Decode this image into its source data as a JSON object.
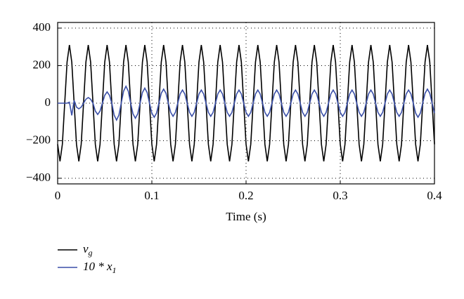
{
  "chart_data": {
    "type": "line",
    "x_label": "Time (s)",
    "x": [
      0,
      0.0025,
      0.005,
      0.0075,
      0.01,
      0.0125,
      0.015,
      0.0175,
      0.02,
      0.0225,
      0.025,
      0.0275,
      0.03,
      0.0325,
      0.035,
      0.0375,
      0.04,
      0.0425,
      0.045,
      0.0475,
      0.05,
      0.0525,
      0.055,
      0.0575,
      0.06,
      0.0625,
      0.065,
      0.0675,
      0.07,
      0.0725,
      0.075,
      0.0775,
      0.08,
      0.0825,
      0.085,
      0.0875,
      0.09,
      0.0925,
      0.095,
      0.0975,
      0.1,
      0.1025,
      0.105,
      0.1075,
      0.11,
      0.1125,
      0.115,
      0.1175,
      0.12,
      0.1225,
      0.125,
      0.1275,
      0.13,
      0.1325,
      0.135,
      0.1375,
      0.14,
      0.1425,
      0.145,
      0.1475,
      0.15,
      0.1525,
      0.155,
      0.1575,
      0.16,
      0.1625,
      0.165,
      0.1675,
      0.17,
      0.1725,
      0.175,
      0.1775,
      0.18,
      0.1825,
      0.185,
      0.1875,
      0.19,
      0.1925,
      0.195,
      0.1975,
      0.2,
      0.2025,
      0.205,
      0.2075,
      0.21,
      0.2125,
      0.215,
      0.2175,
      0.22,
      0.2225,
      0.225,
      0.2275,
      0.23,
      0.2325,
      0.235,
      0.2375,
      0.24,
      0.2425,
      0.245,
      0.2475,
      0.25,
      0.2525,
      0.255,
      0.2575,
      0.26,
      0.2625,
      0.265,
      0.2675,
      0.27,
      0.2725,
      0.275,
      0.2775,
      0.28,
      0.2825,
      0.285,
      0.2875,
      0.29,
      0.2925,
      0.295,
      0.2975,
      0.3,
      0.3025,
      0.305,
      0.3075,
      0.31,
      0.3125,
      0.315,
      0.3175,
      0.32,
      0.3225,
      0.325,
      0.3275,
      0.33,
      0.3325,
      0.335,
      0.3375,
      0.34,
      0.3425,
      0.345,
      0.3475,
      0.35,
      0.3525,
      0.355,
      0.3575,
      0.36,
      0.3625,
      0.365,
      0.3675,
      0.37,
      0.3725,
      0.375,
      0.3775,
      0.38,
      0.3825,
      0.385,
      0.3875,
      0.39,
      0.3925,
      0.395,
      0.3975,
      0.4
    ],
    "series": [
      {
        "name": "v_g",
        "color": "#000000",
        "values": [
          -219,
          -310,
          -219,
          0,
          219,
          310,
          219,
          0,
          -219,
          -310,
          -219,
          0,
          219,
          310,
          219,
          0,
          -219,
          -310,
          -219,
          0,
          219,
          310,
          219,
          0,
          -219,
          -310,
          -219,
          0,
          219,
          310,
          219,
          0,
          -219,
          -310,
          -219,
          0,
          219,
          310,
          219,
          0,
          -219,
          -310,
          -219,
          0,
          219,
          310,
          219,
          0,
          -219,
          -310,
          -219,
          0,
          219,
          310,
          219,
          0,
          -219,
          -310,
          -219,
          0,
          219,
          310,
          219,
          0,
          -219,
          -310,
          -219,
          0,
          219,
          310,
          219,
          0,
          -219,
          -310,
          -219,
          0,
          219,
          310,
          219,
          0,
          -219,
          -310,
          -219,
          0,
          219,
          310,
          219,
          0,
          -219,
          -310,
          -219,
          0,
          219,
          310,
          219,
          0,
          -219,
          -310,
          -219,
          0,
          219,
          310,
          219,
          0,
          -219,
          -310,
          -219,
          0,
          219,
          310,
          219,
          0,
          -219,
          -310,
          -219,
          0,
          219,
          310,
          219,
          0,
          -219,
          -310,
          -219,
          0,
          219,
          310,
          219,
          0,
          -219,
          -310,
          -219,
          0,
          219,
          310,
          219,
          0,
          -219,
          -310,
          -219,
          0,
          219,
          310,
          219,
          0,
          -219,
          -310,
          -219,
          0,
          219,
          310,
          219,
          0,
          -219,
          -310,
          -219,
          0,
          219,
          310,
          219,
          0,
          -219
        ]
      },
      {
        "name": "10 * x_1",
        "color": "#3a4fa8",
        "values": [
          0,
          0,
          0,
          0,
          0,
          5,
          -65,
          15,
          -21,
          -30,
          -21,
          0,
          21,
          30,
          21,
          0,
          -42,
          -60,
          -42,
          0,
          42,
          60,
          42,
          0,
          -64,
          -90,
          -64,
          0,
          64,
          90,
          64,
          0,
          -57,
          -80,
          -57,
          0,
          57,
          80,
          57,
          0,
          -53,
          -75,
          -53,
          0,
          53,
          75,
          53,
          0,
          -49,
          -70,
          -49,
          0,
          49,
          70,
          49,
          0,
          -49,
          -70,
          -49,
          0,
          49,
          70,
          49,
          0,
          -49,
          -70,
          -49,
          0,
          49,
          70,
          49,
          0,
          -49,
          -70,
          -49,
          0,
          49,
          70,
          49,
          0,
          -49,
          -70,
          -49,
          0,
          49,
          70,
          49,
          0,
          -49,
          -70,
          -49,
          0,
          49,
          70,
          49,
          0,
          -49,
          -70,
          -49,
          0,
          49,
          70,
          49,
          0,
          -49,
          -70,
          -49,
          0,
          49,
          70,
          49,
          0,
          -49,
          -70,
          -49,
          0,
          49,
          70,
          49,
          0,
          -49,
          -70,
          -49,
          0,
          49,
          70,
          49,
          0,
          -49,
          -70,
          -49,
          0,
          49,
          70,
          49,
          0,
          -49,
          -70,
          -49,
          0,
          49,
          70,
          49,
          0,
          -49,
          -70,
          -49,
          0,
          49,
          70,
          49,
          0,
          -53,
          -75,
          -53,
          0,
          53,
          75,
          53,
          0,
          -53
        ]
      }
    ],
    "xlim": [
      0,
      0.4
    ],
    "xticks": [
      0,
      0.1,
      0.2,
      0.3,
      0.4
    ],
    "ylim": [
      -430,
      430
    ],
    "yticks": [
      {
        "value": -400,
        "label": "−400"
      },
      {
        "value": -200,
        "label": "−200"
      },
      0,
      200,
      400
    ],
    "grid": true,
    "legend": "below"
  }
}
